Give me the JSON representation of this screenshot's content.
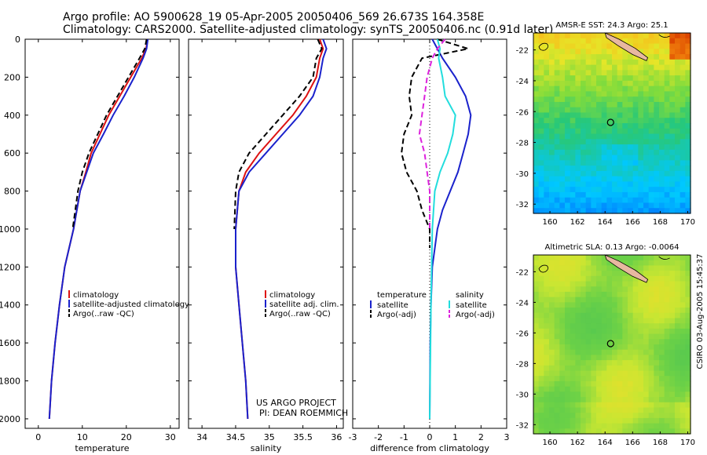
{
  "title_line1": "Argo profile: AO 5900628_19 05-Apr-2005 20050406_569 26.673S 164.358E",
  "title_line2": "Climatology: CARS2000. Satellite-adjusted climatology: synTS_20050406.nc (0.91d later)",
  "stamp": "CSIRO 03-Aug-2005 15:45:37",
  "project_line1": "US ARGO PROJECT",
  "project_line2": "PI: DEAN ROEMMICH",
  "colors": {
    "climatology": "#dd1111",
    "satellite": "#1a22cc",
    "argo": "#000000",
    "salinity": "#22dddd",
    "salinity_argo": "#dd22dd"
  },
  "chart_data": [
    {
      "type": "line",
      "xlabel": "temperature",
      "ylabel": "",
      "xlim": [
        -3,
        32
      ],
      "ylim": [
        2050,
        0
      ],
      "xticks": [
        0,
        10,
        20,
        30
      ],
      "yticks": [
        0,
        200,
        400,
        600,
        800,
        1000,
        1200,
        1400,
        1600,
        1800,
        2000
      ],
      "legend_position": "lower-center",
      "series": [
        {
          "name": "climatology",
          "color": "#dd1111",
          "style": "solid",
          "x": [
            24.8,
            24.5,
            23.5,
            21,
            18.5,
            16,
            14,
            12,
            10.8,
            9.5,
            8,
            6,
            4.8,
            3.8,
            3,
            2.5
          ],
          "y": [
            0,
            50,
            100,
            200,
            300,
            400,
            500,
            600,
            700,
            800,
            1000,
            1200,
            1400,
            1600,
            1800,
            2000
          ]
        },
        {
          "name": "satellite-adjusted climatology",
          "color": "#1a22cc",
          "style": "solid",
          "x": [
            24.9,
            24.6,
            23.8,
            21.8,
            19.5,
            17,
            14.8,
            12.5,
            11,
            9.5,
            8,
            6,
            4.8,
            3.8,
            3,
            2.5
          ],
          "y": [
            0,
            50,
            100,
            200,
            300,
            400,
            500,
            600,
            700,
            800,
            1000,
            1200,
            1400,
            1600,
            1800,
            2000
          ]
        },
        {
          "name": "Argo(..raw -QC)",
          "color": "#000000",
          "style": "dashed",
          "x": [
            24.6,
            24.2,
            23,
            20.5,
            18,
            15.5,
            13.5,
            11.5,
            10,
            9,
            7.8
          ],
          "y": [
            0,
            50,
            100,
            200,
            300,
            400,
            500,
            600,
            700,
            800,
            1000
          ]
        }
      ]
    },
    {
      "type": "line",
      "xlabel": "salinity",
      "ylabel": "",
      "xlim": [
        33.8,
        36.1
      ],
      "ylim": [
        2050,
        0
      ],
      "xticks": [
        34,
        34.5,
        35,
        35.5,
        36
      ],
      "legend_position": "lower-center",
      "series": [
        {
          "name": "climatology",
          "color": "#dd1111",
          "style": "solid",
          "x": [
            35.75,
            35.8,
            35.75,
            35.7,
            35.55,
            35.35,
            35.1,
            34.85,
            34.65,
            34.55,
            34.5,
            34.5,
            34.55,
            34.6,
            34.65,
            34.68
          ],
          "y": [
            0,
            50,
            100,
            200,
            300,
            400,
            500,
            600,
            700,
            800,
            1000,
            1200,
            1400,
            1600,
            1800,
            2000
          ]
        },
        {
          "name": "satellite adj. clim.",
          "color": "#1a22cc",
          "style": "solid",
          "x": [
            35.8,
            35.85,
            35.8,
            35.75,
            35.65,
            35.45,
            35.2,
            34.95,
            34.7,
            34.55,
            34.5,
            34.5,
            34.55,
            34.6,
            34.65,
            34.68
          ],
          "y": [
            0,
            50,
            100,
            200,
            300,
            400,
            500,
            600,
            700,
            800,
            1000,
            1200,
            1400,
            1600,
            1800,
            2000
          ]
        },
        {
          "name": "Argo(..raw -QC)",
          "color": "#000000",
          "style": "dashed",
          "x": [
            35.72,
            35.78,
            35.7,
            35.65,
            35.45,
            35.2,
            34.95,
            34.7,
            34.55,
            34.5,
            34.48
          ],
          "y": [
            0,
            50,
            100,
            200,
            300,
            400,
            500,
            600,
            700,
            800,
            1000
          ]
        }
      ]
    },
    {
      "type": "line",
      "xlabel": "difference from climatology",
      "ylabel": "",
      "xlim": [
        -3,
        3
      ],
      "ylim": [
        2050,
        0
      ],
      "xticks": [
        -3,
        -2,
        -1,
        0,
        1,
        2,
        3
      ],
      "legend_position": "lower-center",
      "legend_groups": [
        {
          "heading": "temperature",
          "entries": [
            "satellite",
            "Argo(-adj)"
          ]
        },
        {
          "heading": "salinity",
          "entries": [
            "satellite",
            "Argo(-adj)"
          ]
        }
      ],
      "series": [
        {
          "name": "temperature satellite",
          "color": "#1a22cc",
          "style": "solid",
          "x": [
            0.1,
            0.3,
            0.5,
            1.0,
            1.4,
            1.6,
            1.5,
            1.3,
            1.1,
            0.8,
            0.5,
            0.3,
            0.1,
            0.05,
            0.02,
            0
          ],
          "y": [
            0,
            50,
            100,
            200,
            300,
            400,
            500,
            600,
            700,
            800,
            900,
            1000,
            1200,
            1400,
            1600,
            2000
          ]
        },
        {
          "name": "temperature Argo(-adj)",
          "color": "#000000",
          "style": "dashed",
          "x": [
            0.3,
            1.5,
            -0.3,
            -0.7,
            -0.8,
            -0.7,
            -1.0,
            -1.1,
            -0.9,
            -0.5,
            -0.3,
            0,
            0
          ],
          "y": [
            0,
            50,
            100,
            200,
            300,
            400,
            500,
            600,
            700,
            800,
            900,
            1000,
            1100
          ]
        },
        {
          "name": "salinity satellite",
          "color": "#22dddd",
          "style": "solid",
          "x": [
            0.3,
            0.4,
            0.35,
            0.5,
            0.6,
            1.0,
            0.9,
            0.7,
            0.4,
            0.2,
            0.1,
            0.05,
            0
          ],
          "y": [
            0,
            50,
            100,
            200,
            300,
            400,
            500,
            600,
            700,
            800,
            1000,
            1400,
            2000
          ]
        },
        {
          "name": "salinity Argo(-adj)",
          "color": "#dd22dd",
          "style": "dashed",
          "x": [
            0.6,
            0.3,
            0.1,
            -0.1,
            -0.2,
            -0.3,
            -0.4,
            -0.2,
            -0.1,
            0,
            0
          ],
          "y": [
            0,
            50,
            100,
            200,
            300,
            400,
            500,
            600,
            700,
            800,
            1000
          ]
        }
      ]
    },
    {
      "type": "heatmap",
      "title": "AMSR-E SST: 24.3 Argo: 25.1",
      "xlim": [
        158.8,
        170.2
      ],
      "ylim": [
        -32.6,
        -20.9
      ],
      "xticks": [
        160,
        162,
        164,
        166,
        168,
        170
      ],
      "yticks": [
        -22,
        -24,
        -26,
        -28,
        -30,
        -32
      ],
      "argo_marker": {
        "lon": 164.4,
        "lat": -26.7
      }
    },
    {
      "type": "heatmap",
      "title": "Altimetric SLA: 0.13 Argo: -0.0064",
      "xlim": [
        158.8,
        170.2
      ],
      "ylim": [
        -32.6,
        -20.9
      ],
      "xticks": [
        160,
        162,
        164,
        166,
        168,
        170
      ],
      "yticks": [
        -22,
        -24,
        -26,
        -28,
        -30,
        -32
      ],
      "argo_marker": {
        "lon": 164.4,
        "lat": -26.7
      }
    }
  ]
}
